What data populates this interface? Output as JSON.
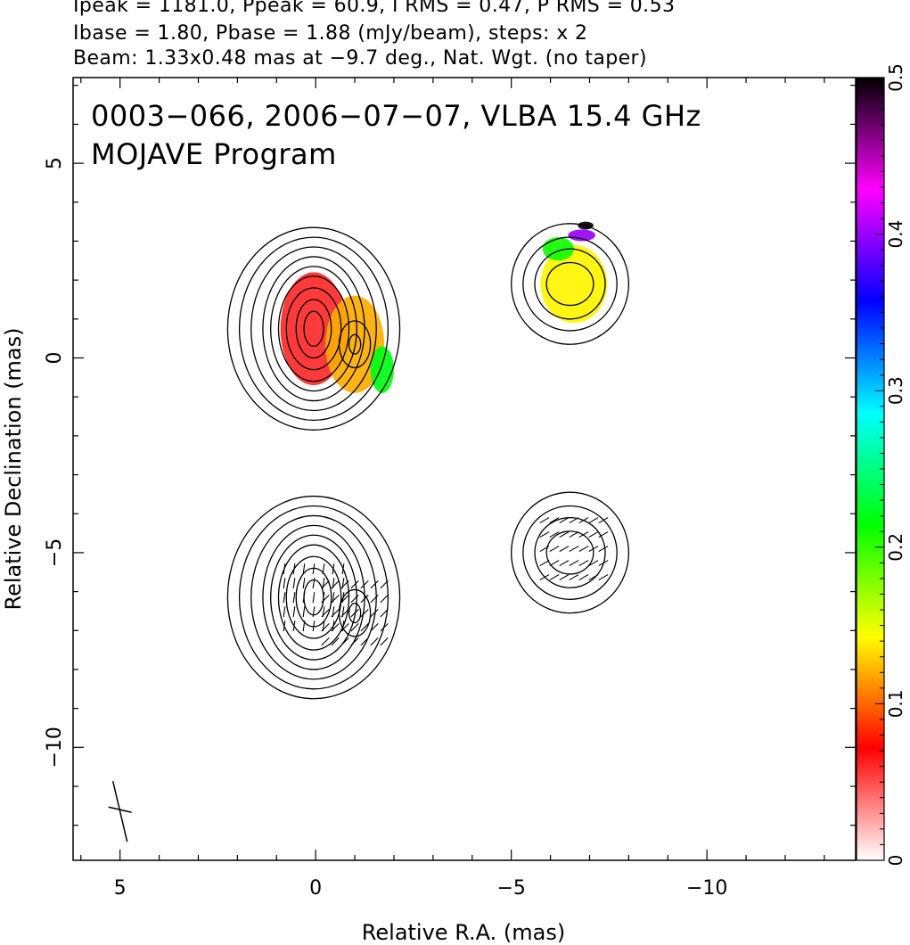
{
  "header": {
    "line1": "Ipeak = 1181.0, Ppeak = 60.9, I RMS = 0.47, P RMS = 0.53",
    "line2": "Ibase = 1.80, Pbase = 1.88 (mJy/beam), steps: x 2",
    "line3": "Beam: 1.33x0.48 mas at −9.7 deg., Nat. Wgt. (no taper)"
  },
  "chart_data": {
    "type": "heatmap",
    "title": "0003−066, 2006−07−07, VLBA 15.4 GHz",
    "subtitle": "MOJAVE Program",
    "xlabel": "Relative R.A. (mas)",
    "ylabel": "Relative Declination (mas)",
    "xlim": [
      6.2,
      -13.8
    ],
    "ylim": [
      -12.9,
      7.2
    ],
    "x_ticks": [
      5,
      0,
      -5,
      -10
    ],
    "x_tick_labels": [
      "5",
      "0",
      "−5",
      "−10"
    ],
    "y_ticks": [
      5,
      0,
      -5,
      -10
    ],
    "y_tick_labels": [
      "5",
      "0",
      "−5",
      "−10"
    ],
    "colorbar": {
      "range": [
        0,
        0.5
      ],
      "ticks": [
        0,
        0.1,
        0.2,
        0.3,
        0.4,
        0.5
      ],
      "tick_labels": [
        "0",
        "0.1",
        "0.2",
        "0.3",
        "0.4",
        "0.5"
      ],
      "colors": [
        "#ffffff",
        "#ff0000",
        "#ffff00",
        "#00ff00",
        "#00ffff",
        "#0000ff",
        "#ff00ff",
        "#000000"
      ]
    },
    "panels": [
      {
        "name": "fractional polarization",
        "y_offset": 0
      },
      {
        "name": "EVPA",
        "y_offset": -6.9
      }
    ],
    "stokes_i_contours": [
      {
        "x": 0.05,
        "y": 0.75,
        "rx": [
          0.25,
          0.45,
          0.7,
          0.9,
          1.1,
          1.3,
          1.6,
          1.9,
          2.2
        ],
        "ry": [
          0.45,
          0.75,
          1.05,
          1.35,
          1.6,
          1.85,
          2.1,
          2.35,
          2.6
        ]
      },
      {
        "x": -1.0,
        "y": 0.35,
        "rx": [
          0.15,
          0.4
        ],
        "ry": [
          0.25,
          0.6
        ]
      },
      {
        "x": -6.5,
        "y": 1.9,
        "rx": [
          0.6,
          0.9,
          1.2,
          1.5
        ],
        "ry": [
          0.55,
          0.9,
          1.2,
          1.55
        ]
      }
    ],
    "fractional_polarization_regions": [
      {
        "x": 0.05,
        "y": 0.75,
        "rx": 0.85,
        "ry": 1.45,
        "value": 0.06
      },
      {
        "x": -1.0,
        "y": 0.35,
        "rx": 0.75,
        "ry": 1.25,
        "value": 0.12
      },
      {
        "x": -1.7,
        "y": -0.3,
        "rx": 0.3,
        "ry": 0.6,
        "value": 0.22
      },
      {
        "x": -6.6,
        "y": 1.9,
        "rx": 0.85,
        "ry": 1.0,
        "value": 0.14
      },
      {
        "x": -6.2,
        "y": 2.8,
        "rx": 0.4,
        "ry": 0.3,
        "value": 0.21
      },
      {
        "x": -6.8,
        "y": 3.15,
        "rx": 0.35,
        "ry": 0.15,
        "value": 0.4
      },
      {
        "x": -6.9,
        "y": 3.4,
        "rx": 0.2,
        "ry": 0.1,
        "value": 0.5
      }
    ],
    "evpa_vectors": [
      {
        "x": 0.05,
        "y": -6.15,
        "angle_deg": 82
      },
      {
        "x": -1.0,
        "y": -6.55,
        "angle_deg": 45
      },
      {
        "x": -6.6,
        "y": -4.9,
        "angle_deg": 30
      }
    ]
  }
}
